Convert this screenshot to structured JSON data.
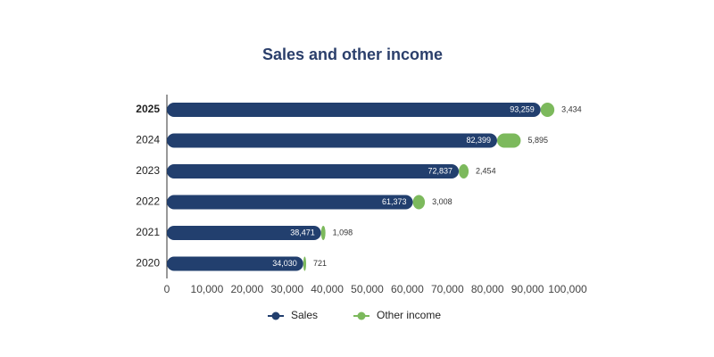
{
  "chart_data": {
    "type": "stacked_hbar",
    "title": "Sales and other income",
    "categories": [
      "2025",
      "2024",
      "2023",
      "2022",
      "2021",
      "2020"
    ],
    "series": [
      {
        "name": "Sales",
        "color": "#223f6e",
        "values": [
          93259,
          82399,
          72837,
          61373,
          38471,
          34030
        ],
        "value_labels": [
          "93,259",
          "82,399",
          "72,837",
          "61,373",
          "38,471",
          "34,030"
        ]
      },
      {
        "name": "Other income",
        "color": "#7cb95c",
        "values": [
          3434,
          5895,
          2454,
          3008,
          1098,
          721
        ],
        "value_labels": [
          "3,434",
          "5,895",
          "2,454",
          "3,008",
          "1,098",
          "721"
        ]
      }
    ],
    "xlim": [
      0,
      100000
    ],
    "xticks": [
      0,
      {
        "value": 10000,
        "label": "10,000"
      },
      {
        "value": 20000,
        "label": "20,000"
      },
      {
        "value": 30000,
        "label": "30,000"
      },
      {
        "value": 40000,
        "label": "40,000"
      },
      {
        "value": 50000,
        "label": "50,000"
      },
      {
        "value": 60000,
        "label": "60,000"
      },
      {
        "value": 70000,
        "label": "70,000"
      },
      {
        "value": 80000,
        "label": "80,000"
      },
      {
        "value": 90000,
        "label": "90,000"
      },
      {
        "value": 100000,
        "label": "100,000"
      }
    ],
    "legend": "bottom"
  }
}
